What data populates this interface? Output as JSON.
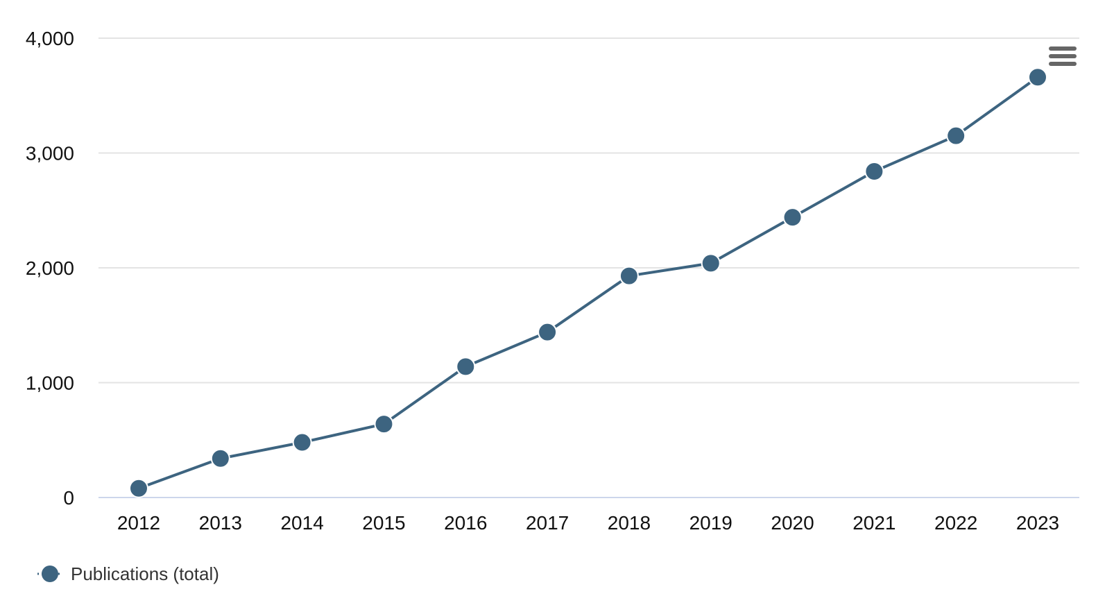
{
  "chart_data": {
    "type": "line",
    "x": [
      "2012",
      "2013",
      "2014",
      "2015",
      "2016",
      "2017",
      "2018",
      "2019",
      "2020",
      "2021",
      "2022",
      "2023"
    ],
    "series": [
      {
        "name": "Publications (total)",
        "values": [
          80,
          340,
          480,
          640,
          1140,
          1440,
          1930,
          2040,
          2440,
          2840,
          3150,
          3660
        ],
        "color": "#3d6480"
      }
    ],
    "ylim": [
      0,
      4000
    ],
    "yticks": [
      0,
      1000,
      2000,
      3000,
      4000
    ],
    "ytick_labels": [
      "0",
      "1,000",
      "2,000",
      "3,000",
      "4,000"
    ],
    "grid": true,
    "legend_position": "bottom-left",
    "menu_icon": "hamburger-menu-icon"
  }
}
